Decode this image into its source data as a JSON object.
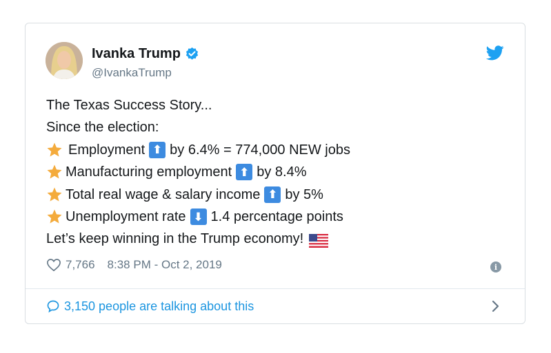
{
  "tweet": {
    "author_name": "Ivanka Trump",
    "author_handle": "@IvankaTrump",
    "lines": {
      "l1": "The Texas Success Story...",
      "l2": "Since the election:",
      "l3a": "Employment",
      "l3b": "by 6.4% = 774,000 NEW jobs",
      "l4a": "Manufacturing employment",
      "l4b": "by 8.4%",
      "l5a": "Total real wage & salary income",
      "l5b": "by 5%",
      "l6a": "Unemployment rate",
      "l6b": "1.4 percentage points",
      "l7": "Let’s keep winning in the Trump economy!"
    },
    "likes": "7,766",
    "timestamp": "8:38 PM - Oct 2, 2019",
    "footer_text": "3,150 people are talking about this",
    "arrows": {
      "up": "⬆",
      "down": "⬇"
    }
  },
  "icons": [
    "avatar",
    "verified-badge-icon",
    "twitter-bird-icon",
    "star-icon",
    "arrow-up-icon",
    "arrow-down-icon",
    "us-flag-icon",
    "heart-icon",
    "info-icon",
    "chat-bubble-icon",
    "chevron-right-icon"
  ],
  "colors": {
    "text": "#14171a",
    "secondary": "#657786",
    "link": "#1b95e0",
    "twitter_blue": "#1da1f2",
    "arrow_box": "#3d8be0",
    "star": "#f4ab3c"
  }
}
